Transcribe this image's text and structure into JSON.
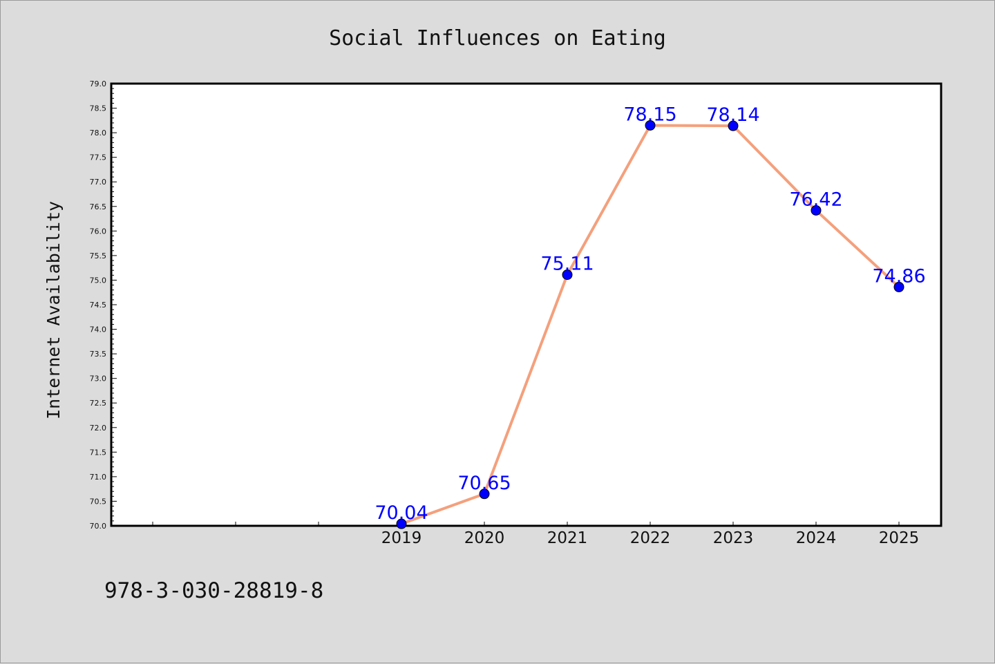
{
  "chart_data": {
    "type": "line",
    "title": "Social Influences on Eating",
    "xlabel": "",
    "ylabel": "Internet Availability",
    "categories": [
      "2019",
      "2020",
      "2021",
      "2022",
      "2023",
      "2024",
      "2025"
    ],
    "series": [
      {
        "values": [
          70.04,
          70.65,
          75.11,
          78.15,
          78.14,
          76.42,
          74.86
        ],
        "data_labels": [
          "70.04",
          "70.65",
          "75.11",
          "78.15",
          "78.14",
          "76.42",
          "74.86"
        ],
        "line_color": "#f4a07c",
        "marker_color": "#0000ff"
      }
    ],
    "ylim": [
      70.0,
      79.0
    ],
    "yticks": [
      "70.0",
      "70.5",
      "71.0",
      "71.5",
      "72.0",
      "72.5",
      "73.0",
      "73.5",
      "74.0",
      "74.5",
      "75.0",
      "75.5",
      "76.0",
      "76.5",
      "77.0",
      "77.5",
      "78.0",
      "78.5",
      "79.0"
    ],
    "grid": false,
    "legend": "none"
  },
  "footer_text": "978-3-030-28819-8",
  "colors": {
    "background": "#dcdcdc",
    "plot_background": "#ffffff",
    "data_label": "#0000ff"
  }
}
